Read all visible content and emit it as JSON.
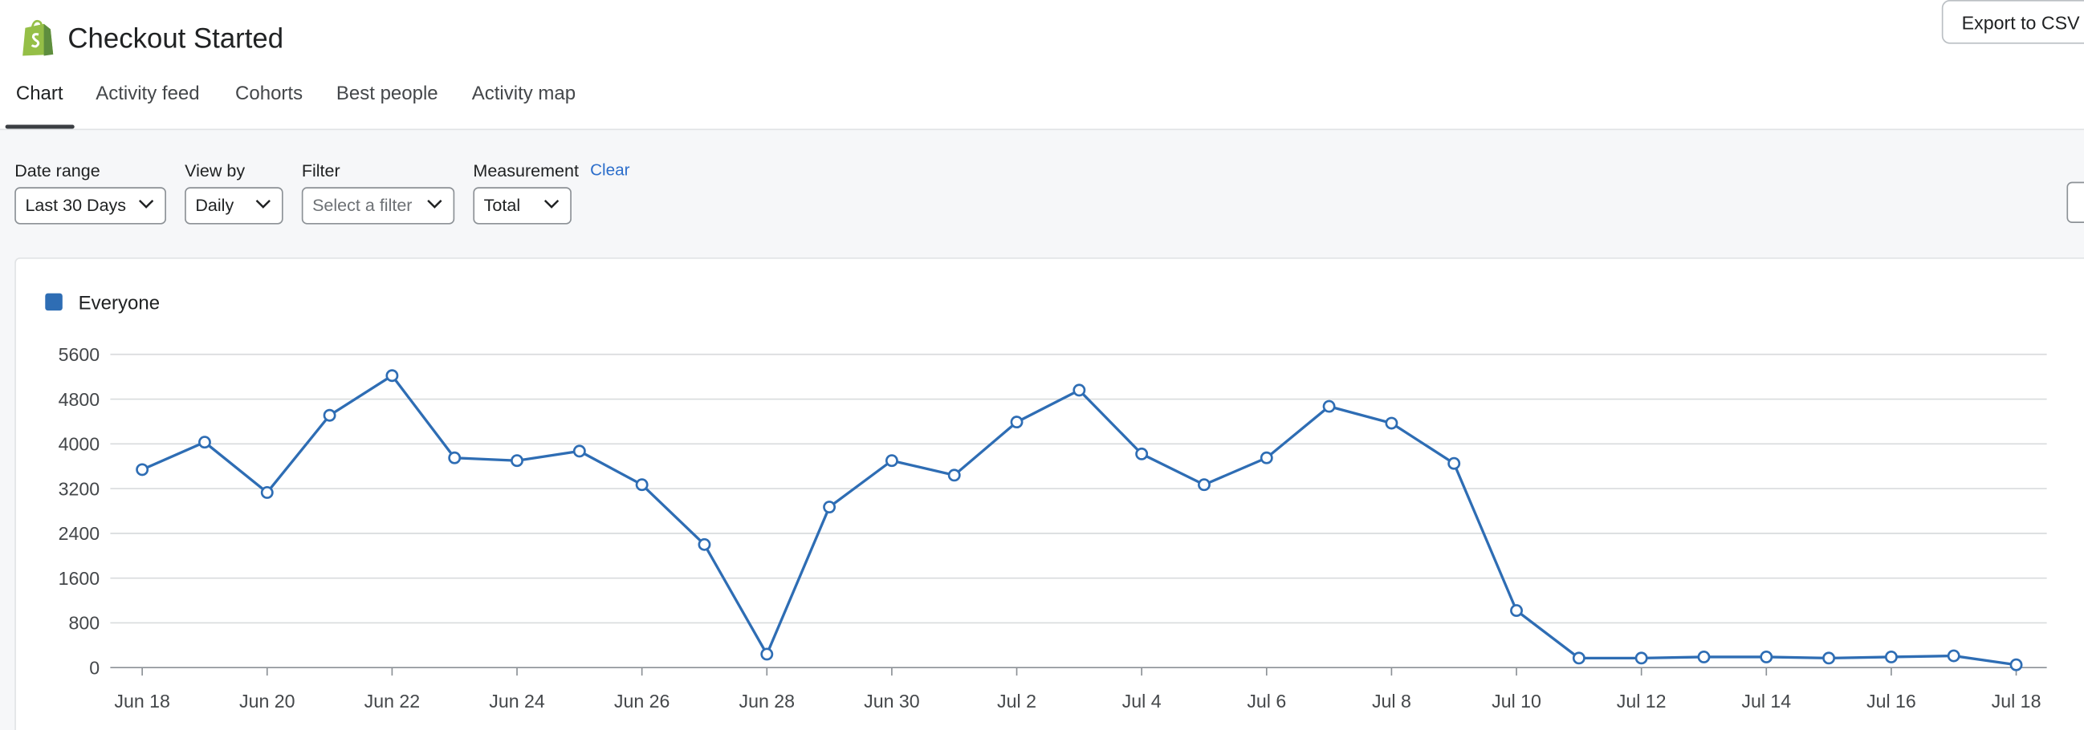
{
  "header": {
    "title": "Checkout Started",
    "export_button": "Export to CSV"
  },
  "tabs": [
    "Chart",
    "Activity feed",
    "Cohorts",
    "Best people",
    "Activity map"
  ],
  "filters": {
    "date_range": {
      "label": "Date range",
      "value": "Last 30 Days"
    },
    "view_by": {
      "label": "View by",
      "value": "Daily"
    },
    "filter": {
      "label": "Filter",
      "value": "Select a filter"
    },
    "measurement": {
      "label": "Measurement",
      "value": "Total",
      "action": "Clear"
    }
  },
  "chart_data": {
    "type": "line",
    "categories": [
      "Jun 18",
      null,
      "Jun 20",
      null,
      "Jun 22",
      null,
      "Jun 24",
      null,
      "Jun 26",
      null,
      "Jun 28",
      null,
      "Jun 30",
      null,
      "Jul 2",
      null,
      "Jul 4",
      null,
      "Jul 6",
      null,
      "Jul 8",
      null,
      "Jul 10",
      null,
      "Jul 12",
      null,
      "Jul 14",
      null,
      "Jul 16",
      null,
      "Jul 18"
    ],
    "series": [
      {
        "name": "Everyone",
        "color": "#2e6db4",
        "values": [
          3540,
          4030,
          3130,
          4510,
          5220,
          3750,
          3700,
          3870,
          3270,
          2200,
          240,
          2870,
          3700,
          3440,
          4390,
          4960,
          3820,
          3270,
          3750,
          4670,
          4370,
          3650,
          1020,
          170,
          170,
          190,
          190,
          170,
          190,
          210,
          50
        ]
      }
    ],
    "ylim": [
      0,
      5600
    ],
    "yticks": [
      0,
      800,
      1600,
      2400,
      3200,
      4000,
      4800,
      5600
    ],
    "grid": true,
    "legend": "top-left"
  }
}
